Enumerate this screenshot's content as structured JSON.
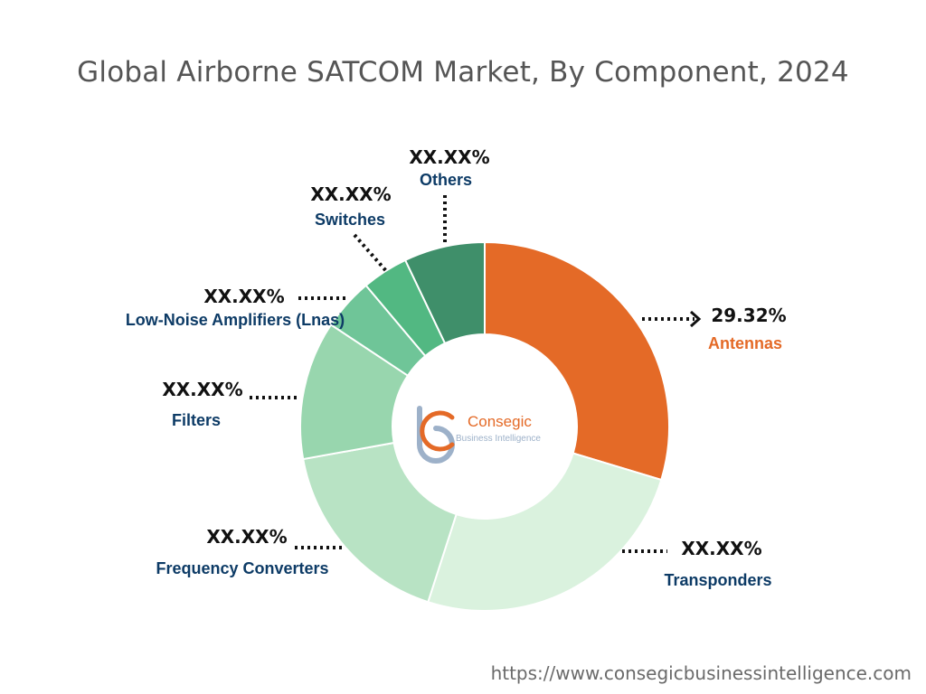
{
  "title": "Global Airborne SATCOM Market, By Component, 2024",
  "footer": {
    "url": "https://www.consegicbusinessintelligence.com"
  },
  "logo": {
    "name": "Consegic",
    "tagline": "Business Intelligence"
  },
  "chart_data": {
    "type": "donut",
    "title": "Global Airborne SATCOM Market, By Component, 2024",
    "slices": [
      {
        "name": "Antennas",
        "value": 29.32,
        "label": "29.32%",
        "color": "#E46A27",
        "label_color": "#E46A27"
      },
      {
        "name": "Transponders",
        "value": 25.0,
        "label": "XX.XX%",
        "color": "#DAF2DE",
        "label_color": "#0D3B66"
      },
      {
        "name": "Frequency Converters",
        "value": 17.0,
        "label": "XX.XX%",
        "color": "#B8E3C4",
        "label_color": "#0D3B66"
      },
      {
        "name": "Filters",
        "value": 12.0,
        "label": "XX.XX%",
        "color": "#98D6AE",
        "label_color": "#0D3B66"
      },
      {
        "name": "Low-Noise Amplifiers (Lnas)",
        "value": 4.5,
        "label": "XX.XX%",
        "color": "#6FC598",
        "label_color": "#0D3B66"
      },
      {
        "name": "Switches",
        "value": 4.0,
        "label": "XX.XX%",
        "color": "#52B882",
        "label_color": "#0D3B66"
      },
      {
        "name": "Others",
        "value": 7.0,
        "label": "XX.XX%",
        "color": "#3F8F6A",
        "label_color": "#0D3B66"
      }
    ]
  }
}
